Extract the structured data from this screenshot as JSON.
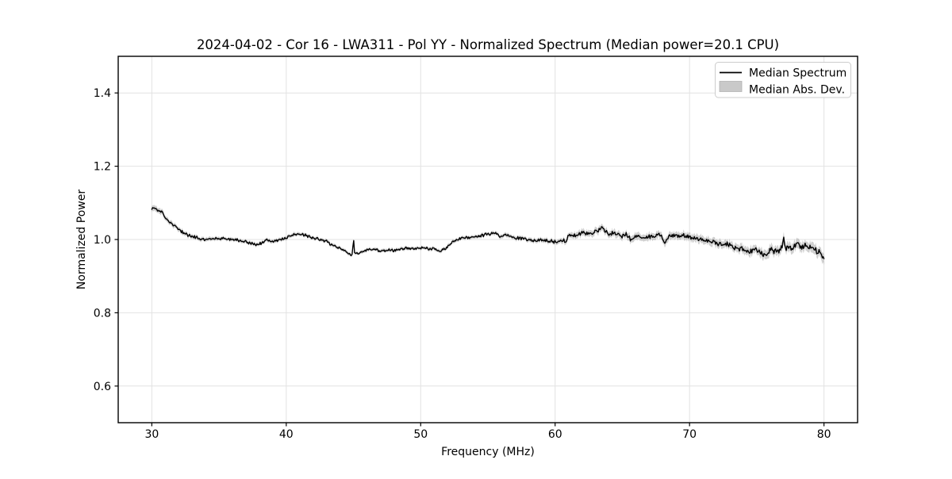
{
  "chart_data": {
    "type": "line",
    "title": "2024-04-02 - Cor 16 - LWA311 - Pol YY - Normalized Spectrum (Median power=20.1 CPU)",
    "xlabel": "Frequency (MHz)",
    "ylabel": "Normalized Power",
    "xlim": [
      27.5,
      82.5
    ],
    "ylim": [
      0.5,
      1.5
    ],
    "grid": true,
    "grid_color": "#e2e2e2",
    "spine_color": "#000000",
    "xticks": {
      "values": [
        30,
        40,
        50,
        60,
        70,
        80
      ],
      "labels": [
        "30",
        "40",
        "50",
        "60",
        "70",
        "80"
      ]
    },
    "yticks": {
      "values": [
        0.6,
        0.8,
        1.0,
        1.2,
        1.4
      ],
      "labels": [
        "0.6",
        "0.8",
        "1.0",
        "1.2",
        "1.4"
      ]
    },
    "legend": {
      "position": "upper right",
      "entries": [
        {
          "label": "Median Spectrum",
          "type": "line",
          "color": "#000000"
        },
        {
          "label": "Median Abs. Dev.",
          "type": "patch",
          "color": "#c9c9c9"
        }
      ]
    },
    "series": [
      {
        "name": "Median Spectrum",
        "type": "line",
        "color": "#000000",
        "linewidth": 1.4,
        "x": [
          30.0,
          30.25,
          30.5,
          30.75,
          31.0,
          31.5,
          32.0,
          32.5,
          33.0,
          33.5,
          34.0,
          34.5,
          35.0,
          35.5,
          36.0,
          36.5,
          37.0,
          37.5,
          37.8,
          38.2,
          38.6,
          39.0,
          39.5,
          40.0,
          40.5,
          41.0,
          41.5,
          42.0,
          42.5,
          43.0,
          43.5,
          44.0,
          44.5,
          44.8,
          44.93,
          45.0,
          45.07,
          45.2,
          45.6,
          46.0,
          46.5,
          47.0,
          47.5,
          48.0,
          48.5,
          49.0,
          49.5,
          50.0,
          50.5,
          51.0,
          51.5,
          52.0,
          52.5,
          53.0,
          53.5,
          54.0,
          54.5,
          55.0,
          55.5,
          56.0,
          56.3,
          57.0,
          57.5,
          58.0,
          58.6,
          59.0,
          59.5,
          60.0,
          60.5,
          60.9,
          61.0,
          61.5,
          62.0,
          62.5,
          63.0,
          63.5,
          64.0,
          64.5,
          65.0,
          65.3,
          65.7,
          66.1,
          66.7,
          67.3,
          67.8,
          68.2,
          68.5,
          69.1,
          69.5,
          70.0,
          70.6,
          71.2,
          71.8,
          72.4,
          72.7,
          73.4,
          74.0,
          74.4,
          74.8,
          75.2,
          75.5,
          76.0,
          76.4,
          76.8,
          76.9,
          77.0,
          77.1,
          77.3,
          77.7,
          78.1,
          78.4,
          78.7,
          79.0,
          79.4,
          79.7,
          80.0
        ],
        "y": [
          1.082,
          1.088,
          1.075,
          1.078,
          1.058,
          1.042,
          1.028,
          1.016,
          1.008,
          1.003,
          1.0,
          1.002,
          1.004,
          1.003,
          1.0,
          0.998,
          0.995,
          0.988,
          0.986,
          0.992,
          1.0,
          0.995,
          1.0,
          1.005,
          1.012,
          1.015,
          1.01,
          1.005,
          1.0,
          0.995,
          0.982,
          0.975,
          0.966,
          0.958,
          0.959,
          1.01,
          0.963,
          0.962,
          0.966,
          0.97,
          0.974,
          0.968,
          0.971,
          0.97,
          0.974,
          0.977,
          0.975,
          0.977,
          0.975,
          0.974,
          0.967,
          0.98,
          0.997,
          1.003,
          1.005,
          1.008,
          1.01,
          1.015,
          1.017,
          1.008,
          1.014,
          1.005,
          1.003,
          0.998,
          0.996,
          0.998,
          0.997,
          0.993,
          0.996,
          0.997,
          1.014,
          1.009,
          1.018,
          1.016,
          1.021,
          1.03,
          1.015,
          1.018,
          1.008,
          1.013,
          0.997,
          1.01,
          1.005,
          1.009,
          1.014,
          0.99,
          1.01,
          1.008,
          1.012,
          1.006,
          1.003,
          0.997,
          0.993,
          0.986,
          0.991,
          0.977,
          0.975,
          0.967,
          0.972,
          0.971,
          0.956,
          0.971,
          0.967,
          0.975,
          0.974,
          1.003,
          0.976,
          0.975,
          0.978,
          0.99,
          0.977,
          0.986,
          0.975,
          0.971,
          0.963,
          0.944
        ]
      },
      {
        "name": "Median Abs. Dev.",
        "type": "band",
        "color": "#8f8f8f",
        "opacity": 0.42,
        "x": [
          30,
          32,
          35,
          40,
          44,
          45,
          50,
          55,
          60,
          61,
          63,
          66,
          70,
          72,
          74,
          76,
          78,
          80
        ],
        "half_width": [
          0.008,
          0.006,
          0.005,
          0.005,
          0.0045,
          0.0045,
          0.0045,
          0.005,
          0.006,
          0.0075,
          0.009,
          0.009,
          0.01,
          0.0105,
          0.011,
          0.012,
          0.013,
          0.014
        ]
      }
    ],
    "render": {
      "samples": 820,
      "noise_seed": 11,
      "noise_frac": 0.6,
      "extra_noise": 0.0018
    }
  }
}
